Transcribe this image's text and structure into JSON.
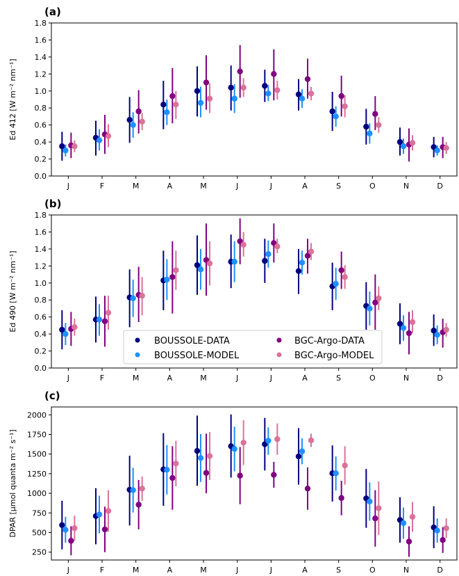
{
  "legend": {
    "entries": [
      {
        "label": "BOUSSOLE-DATA",
        "color": "#00007f"
      },
      {
        "label": "BOUSSOLE-MODEL",
        "color": "#1e90ff"
      },
      {
        "label": "BGC-Argo-DATA",
        "color": "#800080"
      },
      {
        "label": "BGC-Argo-MODEL",
        "color": "#d9739a"
      }
    ],
    "placement": "lower-center (inside panel b)"
  },
  "chart_data": [
    {
      "type": "scatter",
      "panel_label": "(a)",
      "ylabel": "Ed 412 [W m⁻² nm⁻¹]",
      "categories": [
        "J",
        "F",
        "M",
        "A",
        "M",
        "J",
        "J",
        "A",
        "S",
        "O",
        "N",
        "D"
      ],
      "ylim": [
        0,
        1.8
      ],
      "yticks": [
        0.0,
        0.2,
        0.4,
        0.6,
        0.8,
        1.0,
        1.2,
        1.4,
        1.6,
        1.8
      ],
      "ytick_labels": [
        "0.0",
        "0.2",
        "0.4",
        "0.6",
        "0.8",
        "1.0",
        "1.2",
        "1.4",
        "1.6",
        "1.8"
      ],
      "series": [
        {
          "name": "BOUSSOLE-DATA",
          "color": "#00007f",
          "values": [
            0.35,
            0.45,
            0.66,
            0.84,
            1.0,
            1.04,
            1.06,
            0.96,
            0.76,
            0.58,
            0.4,
            0.34
          ],
          "low": [
            0.18,
            0.24,
            0.39,
            0.55,
            0.7,
            0.77,
            0.87,
            0.77,
            0.53,
            0.37,
            0.24,
            0.22
          ],
          "high": [
            0.52,
            0.65,
            0.93,
            1.12,
            1.29,
            1.3,
            1.25,
            1.14,
            0.99,
            0.79,
            0.57,
            0.46
          ]
        },
        {
          "name": "BOUSSOLE-MODEL",
          "color": "#1e90ff",
          "values": [
            0.3,
            0.42,
            0.6,
            0.75,
            0.86,
            0.91,
            0.97,
            0.91,
            0.7,
            0.5,
            0.35,
            0.3
          ],
          "low": [
            0.23,
            0.3,
            0.45,
            0.6,
            0.69,
            0.74,
            0.88,
            0.8,
            0.58,
            0.38,
            0.26,
            0.24
          ],
          "high": [
            0.37,
            0.55,
            0.75,
            0.9,
            1.05,
            1.08,
            1.07,
            1.02,
            0.82,
            0.62,
            0.44,
            0.36
          ]
        },
        {
          "name": "BGC-Argo-DATA",
          "color": "#800080",
          "values": [
            0.36,
            0.49,
            0.76,
            0.94,
            1.1,
            1.23,
            1.2,
            1.14,
            0.94,
            0.73,
            0.37,
            0.34
          ],
          "low": [
            0.21,
            0.26,
            0.5,
            0.62,
            0.78,
            0.92,
            0.89,
            0.91,
            0.7,
            0.54,
            0.17,
            0.21
          ],
          "high": [
            0.51,
            0.72,
            1.01,
            1.27,
            1.42,
            1.54,
            1.49,
            1.38,
            1.18,
            0.94,
            0.56,
            0.46
          ]
        },
        {
          "name": "BGC-Argo-MODEL",
          "color": "#d9739a",
          "values": [
            0.35,
            0.47,
            0.64,
            0.84,
            0.91,
            1.04,
            1.01,
            0.97,
            0.82,
            0.6,
            0.39,
            0.33
          ],
          "low": [
            0.28,
            0.34,
            0.54,
            0.67,
            0.74,
            0.93,
            0.9,
            0.89,
            0.69,
            0.51,
            0.3,
            0.26
          ],
          "high": [
            0.42,
            0.61,
            0.74,
            1.0,
            1.09,
            1.15,
            1.12,
            1.05,
            0.95,
            0.69,
            0.48,
            0.4
          ]
        }
      ]
    },
    {
      "type": "scatter",
      "panel_label": "(b)",
      "ylabel": "Ed 490 [W m⁻² nm⁻¹]",
      "categories": [
        "J",
        "F",
        "M",
        "A",
        "M",
        "J",
        "J",
        "A",
        "S",
        "O",
        "N",
        "D"
      ],
      "ylim": [
        0,
        1.8
      ],
      "yticks": [
        0.0,
        0.2,
        0.4,
        0.6,
        0.8,
        1.0,
        1.2,
        1.4,
        1.6,
        1.8
      ],
      "ytick_labels": [
        "0.0",
        "0.2",
        "0.4",
        "0.6",
        "0.8",
        "1.0",
        "1.2",
        "1.4",
        "1.6",
        "1.8"
      ],
      "series": [
        {
          "name": "BOUSSOLE-DATA",
          "color": "#00007f",
          "values": [
            0.45,
            0.57,
            0.83,
            1.03,
            1.21,
            1.25,
            1.26,
            1.14,
            0.96,
            0.73,
            0.52,
            0.44
          ],
          "low": [
            0.22,
            0.3,
            0.48,
            0.68,
            0.86,
            0.94,
            1.0,
            0.87,
            0.68,
            0.45,
            0.28,
            0.26
          ],
          "high": [
            0.68,
            0.84,
            1.16,
            1.38,
            1.56,
            1.57,
            1.52,
            1.4,
            1.24,
            1.01,
            0.76,
            0.63
          ]
        },
        {
          "name": "BOUSSOLE-MODEL",
          "color": "#1e90ff",
          "values": [
            0.4,
            0.57,
            0.82,
            1.04,
            1.16,
            1.25,
            1.34,
            1.24,
            0.99,
            0.7,
            0.47,
            0.39
          ],
          "low": [
            0.27,
            0.38,
            0.6,
            0.8,
            0.92,
            1.01,
            1.18,
            1.1,
            0.8,
            0.5,
            0.32,
            0.28
          ],
          "high": [
            0.53,
            0.75,
            1.04,
            1.28,
            1.4,
            1.49,
            1.5,
            1.38,
            1.18,
            0.9,
            0.62,
            0.5
          ]
        },
        {
          "name": "BGC-Argo-DATA",
          "color": "#800080",
          "values": [
            0.46,
            0.55,
            0.86,
            1.07,
            1.27,
            1.49,
            1.47,
            1.32,
            1.15,
            0.77,
            0.41,
            0.42
          ],
          "low": [
            0.26,
            0.25,
            0.54,
            0.64,
            0.85,
            1.22,
            1.24,
            1.11,
            0.93,
            0.45,
            0.16,
            0.24
          ],
          "high": [
            0.66,
            0.85,
            1.19,
            1.49,
            1.7,
            1.76,
            1.7,
            1.52,
            1.37,
            1.1,
            0.66,
            0.58
          ]
        },
        {
          "name": "BGC-Argo-MODEL",
          "color": "#d9739a",
          "values": [
            0.48,
            0.65,
            0.85,
            1.15,
            1.23,
            1.45,
            1.43,
            1.37,
            1.07,
            0.82,
            0.54,
            0.45
          ],
          "low": [
            0.38,
            0.45,
            0.62,
            0.92,
            0.97,
            1.31,
            1.35,
            1.27,
            0.93,
            0.68,
            0.41,
            0.37
          ],
          "high": [
            0.58,
            0.85,
            1.07,
            1.38,
            1.49,
            1.6,
            1.52,
            1.47,
            1.21,
            0.96,
            0.68,
            0.53
          ]
        }
      ]
    },
    {
      "type": "scatter",
      "panel_label": "(c)",
      "ylabel": "DPAR  [μmol quanta m⁻² s⁻¹]",
      "categories": [
        "J",
        "F",
        "M",
        "A",
        "M",
        "J",
        "J",
        "A",
        "S",
        "O",
        "N",
        "D"
      ],
      "ylim": [
        150,
        2100
      ],
      "yticks": [
        250,
        500,
        750,
        1000,
        1250,
        1500,
        1750,
        2000
      ],
      "ytick_labels": [
        "250",
        "500",
        "750",
        "1000",
        "1250",
        "1500",
        "1750",
        "2000"
      ],
      "series": [
        {
          "name": "BOUSSOLE-DATA",
          "color": "#00007f",
          "values": [
            595,
            710,
            1045,
            1305,
            1540,
            1600,
            1625,
            1470,
            1255,
            935,
            660,
            565
          ],
          "low": [
            285,
            350,
            590,
            840,
            1095,
            1200,
            1290,
            1110,
            895,
            560,
            370,
            300
          ],
          "high": [
            905,
            1065,
            1480,
            1765,
            1990,
            2005,
            1960,
            1830,
            1610,
            1310,
            950,
            835
          ]
        },
        {
          "name": "BOUSSOLE-MODEL",
          "color": "#1e90ff",
          "values": [
            535,
            730,
            1040,
            1300,
            1450,
            1565,
            1670,
            1535,
            1255,
            895,
            620,
            525
          ],
          "low": [
            370,
            490,
            755,
            985,
            1145,
            1280,
            1490,
            1370,
            1035,
            650,
            420,
            370
          ],
          "high": [
            700,
            970,
            1325,
            1615,
            1755,
            1850,
            1840,
            1700,
            1470,
            1140,
            820,
            680
          ]
        },
        {
          "name": "BGC-Argo-DATA",
          "color": "#800080",
          "values": [
            395,
            540,
            855,
            1195,
            1260,
            1225,
            1235,
            1060,
            940,
            680,
            385,
            405
          ],
          "low": [
            210,
            250,
            540,
            790,
            1000,
            860,
            1070,
            790,
            720,
            320,
            190,
            240
          ],
          "high": [
            580,
            830,
            1170,
            1600,
            1760,
            1590,
            1400,
            1330,
            1160,
            1040,
            580,
            570
          ]
        },
        {
          "name": "BGC-Argo-MODEL",
          "color": "#d9739a",
          "values": [
            555,
            775,
            1060,
            1380,
            1475,
            1645,
            1690,
            1675,
            1355,
            810,
            700,
            555
          ],
          "low": [
            395,
            510,
            905,
            1090,
            1170,
            1360,
            1490,
            1590,
            1110,
            470,
            510,
            430
          ],
          "high": [
            715,
            1040,
            1215,
            1670,
            1780,
            1930,
            1890,
            1760,
            1600,
            1150,
            890,
            680
          ]
        }
      ]
    }
  ]
}
